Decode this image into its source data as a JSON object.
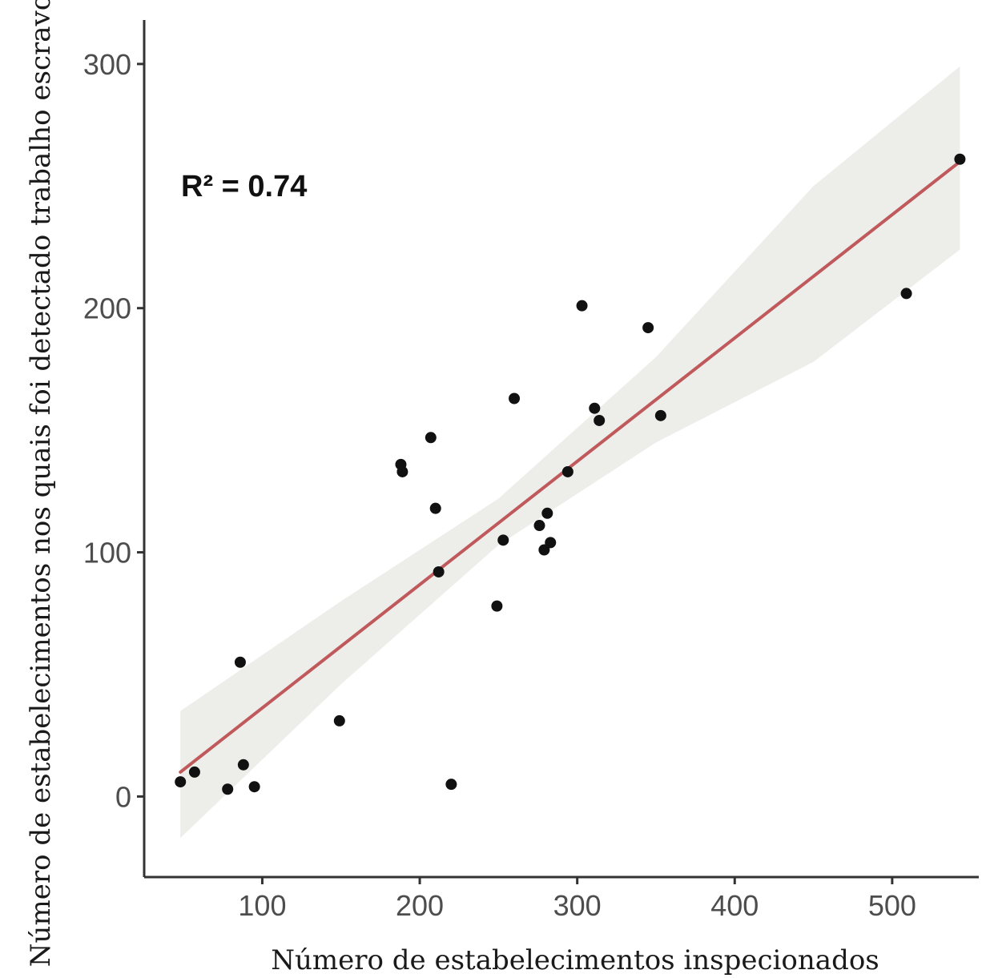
{
  "chart_data": {
    "type": "scatter",
    "title": "",
    "xlabel": "Número de estabelecimentos inspecionados",
    "ylabel": "Número de estabelecimentos nos quais foi detectado trabalho escravo",
    "xlim": [
      25,
      555
    ],
    "ylim": [
      -33,
      318
    ],
    "xticks": [
      100,
      200,
      300,
      400,
      500
    ],
    "yticks": [
      0,
      100,
      200,
      300
    ],
    "grid": false,
    "annotation": "R² = 0.74",
    "colors": {
      "points": "#111111",
      "fit_line": "#c0595c",
      "confidence_band": "#ededea",
      "axis": "#333333"
    },
    "points": [
      {
        "x": 48,
        "y": 6
      },
      {
        "x": 57,
        "y": 10
      },
      {
        "x": 78,
        "y": 3
      },
      {
        "x": 86,
        "y": 55
      },
      {
        "x": 88,
        "y": 13
      },
      {
        "x": 95,
        "y": 4
      },
      {
        "x": 149,
        "y": 31
      },
      {
        "x": 188,
        "y": 136
      },
      {
        "x": 189,
        "y": 133
      },
      {
        "x": 207,
        "y": 147
      },
      {
        "x": 210,
        "y": 118
      },
      {
        "x": 212,
        "y": 92
      },
      {
        "x": 220,
        "y": 5
      },
      {
        "x": 249,
        "y": 78
      },
      {
        "x": 253,
        "y": 105
      },
      {
        "x": 260,
        "y": 163
      },
      {
        "x": 276,
        "y": 111
      },
      {
        "x": 279,
        "y": 101
      },
      {
        "x": 281,
        "y": 116
      },
      {
        "x": 283,
        "y": 104
      },
      {
        "x": 294,
        "y": 133
      },
      {
        "x": 303,
        "y": 201
      },
      {
        "x": 311,
        "y": 159
      },
      {
        "x": 314,
        "y": 154
      },
      {
        "x": 345,
        "y": 192
      },
      {
        "x": 353,
        "y": 156
      },
      {
        "x": 509,
        "y": 206
      },
      {
        "x": 543,
        "y": 261
      }
    ],
    "fit_line": {
      "x": [
        48,
        543
      ],
      "y": [
        10,
        260
      ]
    },
    "confidence_band": {
      "x": [
        48,
        150,
        250,
        350,
        450,
        543
      ],
      "lower": [
        -17,
        46,
        103,
        145,
        178,
        224
      ],
      "upper": [
        35,
        80,
        122,
        180,
        250,
        299
      ]
    }
  }
}
